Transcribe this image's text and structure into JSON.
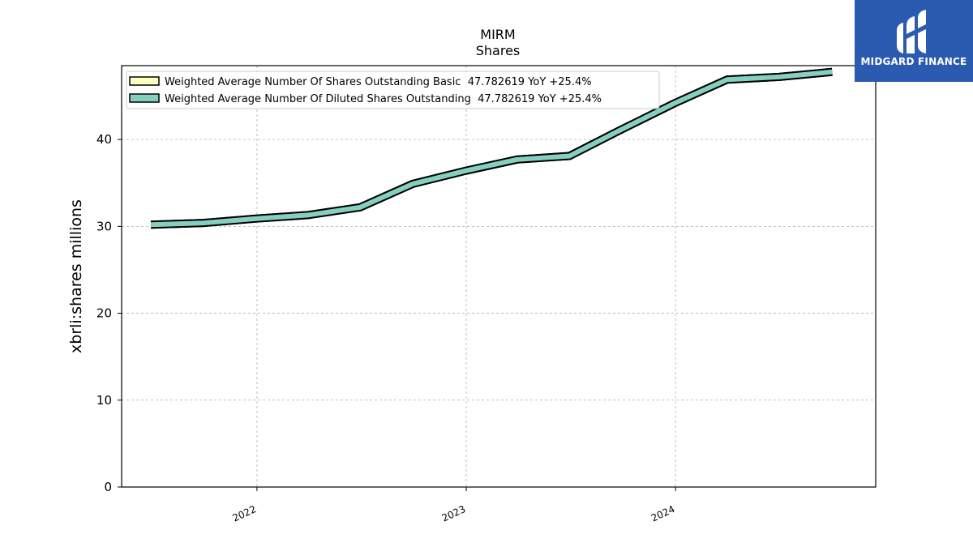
{
  "chart_data": {
    "type": "line",
    "title": "MIRM",
    "subtitle": "Shares",
    "xlabel": "",
    "ylabel": "xbrli:shares millions",
    "x_ticks": [
      "2022",
      "2023",
      "2024"
    ],
    "y_ticks": [
      "0",
      "10",
      "20",
      "30",
      "40"
    ],
    "ylim": [
      0,
      48.5
    ],
    "xlim": [
      "2021-05-10",
      "2024-12-15"
    ],
    "grid": true,
    "legend_position": "upper-left",
    "x": [
      "2021-06-30",
      "2021-09-30",
      "2021-12-31",
      "2022-03-31",
      "2022-06-30",
      "2022-09-30",
      "2022-12-31",
      "2023-03-31",
      "2023-06-30",
      "2023-09-30",
      "2023-12-31",
      "2024-03-31",
      "2024-06-30",
      "2024-09-30"
    ],
    "series": [
      {
        "name": "Weighted Average Number Of Shares Outstanding Basic  47.782619 YoY +25.4%",
        "color": "#ffffc0",
        "values": [
          30.2,
          30.4,
          30.9,
          31.3,
          32.2,
          34.9,
          36.4,
          37.7,
          38.1,
          41.2,
          44.2,
          46.9,
          47.2,
          47.78
        ]
      },
      {
        "name": "Weighted Average Number Of Diluted Shares Outstanding  47.782619 YoY +25.4%",
        "color": "#84cfc0",
        "values": [
          30.2,
          30.4,
          30.9,
          31.3,
          32.2,
          34.9,
          36.4,
          37.7,
          38.1,
          41.2,
          44.2,
          46.9,
          47.2,
          47.78
        ]
      }
    ]
  },
  "logo": {
    "text": "MIDGARD FINANCE"
  }
}
